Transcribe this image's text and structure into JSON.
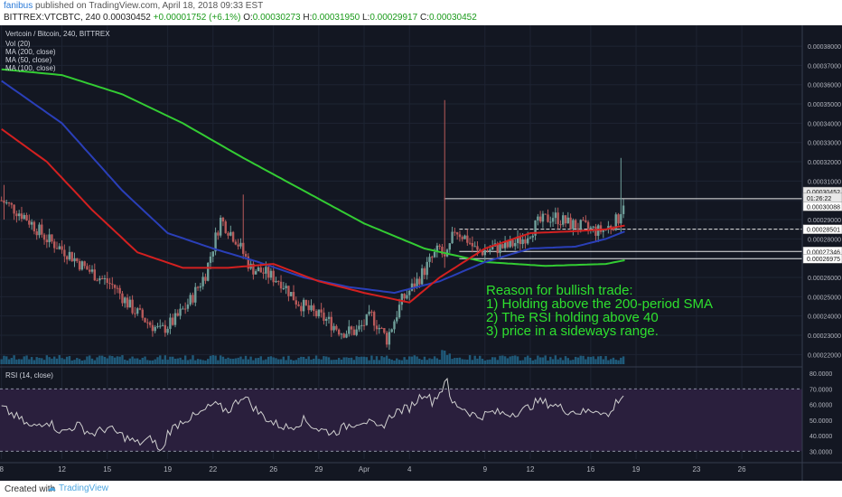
{
  "header": {
    "author": "fanibus",
    "published": "published on TradingView.com, April 18, 2018 09:33 EST",
    "symbol_line": "BITTREX:VTCBTC, 240",
    "last": "0.00030452",
    "change": "+0.00001752 (+6.1%)",
    "o_label": "O:",
    "o": "0.00030273",
    "h_label": "H:",
    "h": "0.00031950",
    "l_label": "L:",
    "l": "0.00029917",
    "c_label": "C:",
    "c": "0.00030452"
  },
  "legend": {
    "title": "Vertcoin / Bitcoin, 240, BITTREX",
    "vol": "Vol (20)",
    "ma200": "MA (200, close)",
    "ma50": "MA (50, close)",
    "ma100": "MA (100, close)"
  },
  "rsi_legend": "RSI (14, close)",
  "annotation": [
    "Reason for bullish trade:",
    "1) Holding above the 200-period SMA",
    "2) The RSI holding above 40",
    "3) price in a sideways range."
  ],
  "footer": {
    "created": "Created with",
    "brand": "TradingView"
  },
  "colors": {
    "bg": "#131722",
    "up": "#6f9f9a",
    "down": "#b85a5a",
    "ma200": "#33cc33",
    "ma50": "#2a3fb8",
    "ma100": "#d32020",
    "rsi": "#cfcfcf",
    "rsi_band": "#2a1f3d",
    "annotation": "#2ee02e",
    "volume": "#1f5a7a"
  },
  "chart_data": {
    "type": "candlestick",
    "price_ticks": [
      "0.00038000",
      "0.00037000",
      "0.00036000",
      "0.00035000",
      "0.00034000",
      "0.00033000",
      "0.00032000",
      "0.00031000",
      "0.00030000",
      "0.00029000",
      "0.00028000",
      "0.00027000",
      "0.00026000",
      "0.00025000",
      "0.00024000",
      "0.00023000",
      "0.00022000"
    ],
    "price_range": [
      0.000215,
      0.000388
    ],
    "price_badges": [
      {
        "value": 0.00030452,
        "label": "0.00030452",
        "bg": "#e8e8e8"
      },
      {
        "value": 0.00030135,
        "label": "01:26:22",
        "bg": "#e8e8e8"
      },
      {
        "value": 0.00029688,
        "label": "0.00030088",
        "bg": "#ffffff"
      },
      {
        "value": 0.00028501,
        "label": "0.00028501",
        "bg": "#ffffff"
      },
      {
        "value": 0.00027346,
        "label": "0.00027346",
        "bg": "#ffffff"
      },
      {
        "value": 0.00026975,
        "label": "0.00026975",
        "bg": "#ffffff"
      }
    ],
    "hlines": [
      {
        "value": 0.00030088,
        "from_label": "Apr 5",
        "to_label": "Apr 18",
        "style": "solid"
      },
      {
        "value": 0.00028501,
        "from_label": "Apr 5",
        "to_label": "Apr 18",
        "style": "dashed"
      },
      {
        "value": 0.00027346,
        "from_label": "Apr 5",
        "to_label": "Apr 18",
        "style": "solid"
      },
      {
        "value": 0.00026975,
        "from_label": "Apr 5",
        "to_label": "Apr 18",
        "style": "solid"
      }
    ],
    "rsi_ticks": [
      "80.0000",
      "70.0000",
      "60.0000",
      "50.0000",
      "40.0000",
      "30.0000"
    ],
    "rsi_range": [
      25,
      83
    ],
    "rsi_bands": [
      30,
      70
    ],
    "x_ticks": [
      "8",
      "12",
      "15",
      "19",
      "22",
      "26",
      "29",
      "Apr",
      "4",
      "9",
      "12",
      "16",
      "19",
      "23",
      "26"
    ],
    "x_tick_days": [
      8,
      12,
      15,
      19,
      22,
      26,
      29,
      32,
      35,
      40,
      43,
      47,
      50,
      54,
      57
    ],
    "x_range_days": [
      7.9,
      61
    ],
    "price_anchors": [
      [
        8.0,
        0.0003
      ],
      [
        9.5,
        0.000292
      ],
      [
        11,
        0.00028
      ],
      [
        12.5,
        0.000272
      ],
      [
        13.5,
        0.000265
      ],
      [
        14.5,
        0.00026
      ],
      [
        15.5,
        0.000255
      ],
      [
        16.5,
        0.000245
      ],
      [
        17.5,
        0.000238
      ],
      [
        18.5,
        0.000232
      ],
      [
        19.5,
        0.000238
      ],
      [
        20.5,
        0.000248
      ],
      [
        21.5,
        0.000262
      ],
      [
        22.5,
        0.00029
      ],
      [
        23.5,
        0.00028
      ],
      [
        24.5,
        0.000265
      ],
      [
        25.5,
        0.000262
      ],
      [
        26.5,
        0.000258
      ],
      [
        27.5,
        0.000248
      ],
      [
        28.5,
        0.000242
      ],
      [
        29.5,
        0.000238
      ],
      [
        30.5,
        0.000232
      ],
      [
        31.5,
        0.000232
      ],
      [
        32.5,
        0.00024
      ],
      [
        33.5,
        0.000228
      ],
      [
        34.5,
        0.000248
      ],
      [
        35.5,
        0.000258
      ],
      [
        36.5,
        0.00027
      ],
      [
        37.0,
        0.000275
      ],
      [
        37.4,
        0.000268
      ],
      [
        38.0,
        0.000285
      ],
      [
        38.8,
        0.00028
      ],
      [
        39.5,
        0.000273
      ],
      [
        40.5,
        0.000275
      ],
      [
        41.5,
        0.000276
      ],
      [
        42.5,
        0.00028
      ],
      [
        43.5,
        0.000288
      ],
      [
        44.5,
        0.000292
      ],
      [
        45.5,
        0.000288
      ],
      [
        46.5,
        0.000286
      ],
      [
        47.5,
        0.000284
      ],
      [
        48.0,
        0.000285
      ],
      [
        48.8,
        0.00029
      ],
      [
        49.3,
        0.000303
      ]
    ],
    "spikes": [
      {
        "day": 37.4,
        "high": 0.000352,
        "low": 0.000265
      },
      {
        "day": 49.0,
        "high": 0.000322,
        "low": 0.000283
      },
      {
        "day": 24.0,
        "high": 0.000303,
        "low": 0.00027
      },
      {
        "day": 8.2,
        "high": 0.000308,
        "low": 0.00029
      }
    ],
    "ma200_anchors": [
      [
        8.0,
        0.000368
      ],
      [
        12,
        0.000365
      ],
      [
        16,
        0.000355
      ],
      [
        20,
        0.00034
      ],
      [
        24,
        0.000322
      ],
      [
        28,
        0.000305
      ],
      [
        32,
        0.000288
      ],
      [
        36,
        0.000275
      ],
      [
        40,
        0.000268
      ],
      [
        44,
        0.000266
      ],
      [
        48,
        0.000267
      ],
      [
        49.3,
        0.000269
      ]
    ],
    "ma50_anchors": [
      [
        8.0,
        0.000362
      ],
      [
        12,
        0.00034
      ],
      [
        16,
        0.000305
      ],
      [
        19,
        0.000283
      ],
      [
        22,
        0.000275
      ],
      [
        25,
        0.000268
      ],
      [
        28,
        0.00026
      ],
      [
        31,
        0.000255
      ],
      [
        34,
        0.000252
      ],
      [
        37,
        0.000258
      ],
      [
        40,
        0.000268
      ],
      [
        43,
        0.000275
      ],
      [
        46,
        0.000276
      ],
      [
        48,
        0.00028
      ],
      [
        49.3,
        0.000284
      ]
    ],
    "ma100_anchors": [
      [
        8.0,
        0.000337
      ],
      [
        11,
        0.00032
      ],
      [
        14,
        0.000295
      ],
      [
        17,
        0.000273
      ],
      [
        20,
        0.000265
      ],
      [
        23,
        0.000265
      ],
      [
        26,
        0.000267
      ],
      [
        29,
        0.000258
      ],
      [
        32,
        0.000252
      ],
      [
        35,
        0.000247
      ],
      [
        37,
        0.00026
      ],
      [
        40,
        0.000275
      ],
      [
        43,
        0.000283
      ],
      [
        46,
        0.000284
      ],
      [
        48,
        0.000285
      ],
      [
        49.3,
        0.000287
      ]
    ],
    "rsi_anchors": [
      [
        8.0,
        58
      ],
      [
        9,
        52
      ],
      [
        10,
        45
      ],
      [
        11,
        50
      ],
      [
        12,
        42
      ],
      [
        13,
        47
      ],
      [
        14,
        41
      ],
      [
        15,
        45
      ],
      [
        16,
        40
      ],
      [
        17,
        35
      ],
      [
        18,
        38
      ],
      [
        18.6,
        28
      ],
      [
        19,
        42
      ],
      [
        20,
        50
      ],
      [
        21,
        53
      ],
      [
        22,
        60
      ],
      [
        23,
        56
      ],
      [
        24,
        66
      ],
      [
        25,
        55
      ],
      [
        26,
        48
      ],
      [
        27,
        45
      ],
      [
        28,
        50
      ],
      [
        29,
        44
      ],
      [
        30,
        42
      ],
      [
        31,
        47
      ],
      [
        32,
        50
      ],
      [
        33,
        44
      ],
      [
        34,
        55
      ],
      [
        35,
        58
      ],
      [
        36,
        68
      ],
      [
        36.5,
        62
      ],
      [
        37.2,
        70
      ],
      [
        37.4,
        80
      ],
      [
        37.7,
        62
      ],
      [
        38.5,
        58
      ],
      [
        39.5,
        52
      ],
      [
        40.5,
        55
      ],
      [
        41.5,
        54
      ],
      [
        42.5,
        56
      ],
      [
        43.5,
        62
      ],
      [
        44.5,
        60
      ],
      [
        45.5,
        56
      ],
      [
        46.5,
        55
      ],
      [
        47.5,
        57
      ],
      [
        48.2,
        52
      ],
      [
        48.7,
        62
      ],
      [
        49.3,
        67
      ]
    ]
  }
}
